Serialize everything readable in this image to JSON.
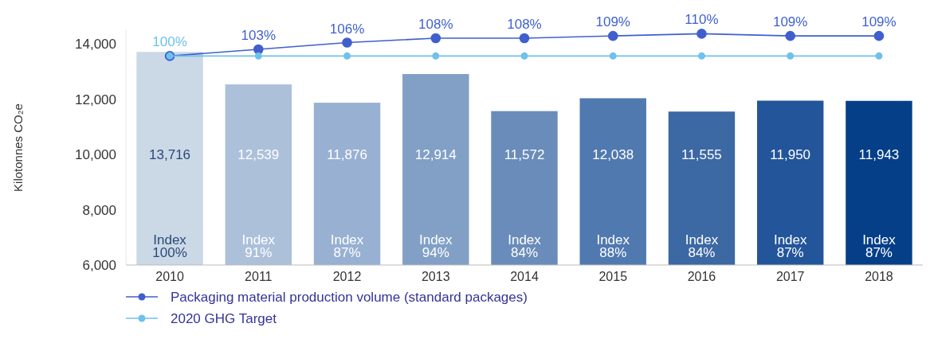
{
  "chart_data": {
    "type": "bar",
    "ylabel": "Kilotonnes CO₂e",
    "categories": [
      "2010",
      "2011",
      "2012",
      "2013",
      "2014",
      "2015",
      "2016",
      "2017",
      "2018"
    ],
    "ylim": [
      6000,
      14500
    ],
    "yticks": [
      {
        "value": 6000,
        "label": "6,000"
      },
      {
        "value": 8000,
        "label": "8,000"
      },
      {
        "value": 10000,
        "label": "10,000"
      },
      {
        "value": 12000,
        "label": "12,000"
      },
      {
        "value": 14000,
        "label": "14,000"
      }
    ],
    "legend": "bottom left",
    "marker": "circle",
    "series": [
      {
        "colors": [
          "#cbd8e6",
          "#adc0da",
          "#98b0d2",
          "#82a0c6",
          "#6a8cba",
          "#5079af",
          "#3c68a4",
          "#23559a",
          "#053f88"
        ],
        "values": [
          13716,
          12539,
          11876,
          12914,
          11572,
          12038,
          11555,
          11950,
          11943
        ],
        "value_labels": [
          "13,716",
          "12,539",
          "11,876",
          "12,914",
          "11,572",
          "12,038",
          "11,555",
          "11,950",
          "11,943"
        ]
      },
      {
        "type": "line",
        "axis": "y2",
        "name": "Packaging material production volume (standard packages)",
        "color": "#3f5fcf",
        "values": [
          100,
          103,
          106,
          108,
          108,
          109,
          110,
          109,
          109
        ],
        "value_labels": [
          null,
          "103%",
          "106%",
          "108%",
          "108%",
          "109%",
          "110%",
          "109%",
          "109%"
        ]
      },
      {
        "type": "line",
        "axis": "y2",
        "name": "2020 GHG Target",
        "color": "#6ec1ea",
        "values": [
          100,
          100,
          100,
          100,
          100,
          100,
          100,
          100,
          100
        ],
        "value_labels": [
          "100%",
          null,
          null,
          null,
          null,
          null,
          null,
          null,
          null
        ]
      }
    ],
    "annotations": [
      "Index 100%",
      "Index 91%",
      "Index 87%",
      "Index 94%",
      "Index 84%",
      "Index 88%",
      "Index 84%",
      "Index 87%",
      "Index 87%"
    ]
  }
}
